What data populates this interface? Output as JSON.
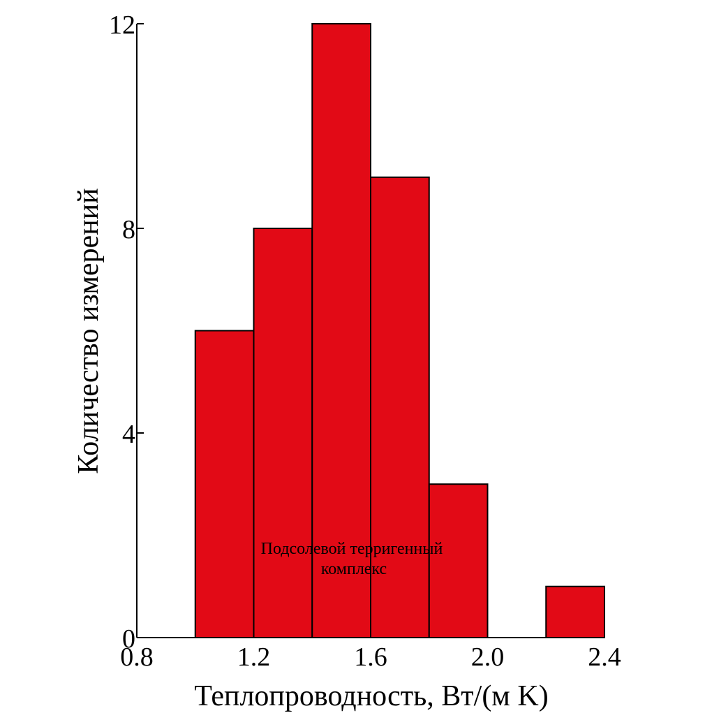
{
  "chart_data": {
    "type": "bar",
    "xlabel": "Теплопроводность, Вт/(м K)",
    "ylabel": "Количество измерений",
    "annotation": [
      "Подсолевой терригенный",
      "комплекс"
    ],
    "xlim": [
      0.8,
      2.4
    ],
    "ylim": [
      0,
      12
    ],
    "x_ticks": [
      0.8,
      1.2,
      1.6,
      2.0,
      2.4
    ],
    "x_tick_labels": [
      "0.8",
      "1.2",
      "1.6",
      "2.0",
      "2.4"
    ],
    "y_ticks": [
      0,
      4,
      8,
      12
    ],
    "y_tick_labels": [
      "0",
      "4",
      "8",
      "12"
    ],
    "bin_width": 0.2,
    "bins": [
      {
        "x0": 1.0,
        "x1": 1.2,
        "value": 6
      },
      {
        "x0": 1.2,
        "x1": 1.4,
        "value": 8
      },
      {
        "x0": 1.4,
        "x1": 1.6,
        "value": 12
      },
      {
        "x0": 1.6,
        "x1": 1.8,
        "value": 9
      },
      {
        "x0": 1.8,
        "x1": 2.0,
        "value": 3
      },
      {
        "x0": 2.0,
        "x1": 2.2,
        "value": 0
      },
      {
        "x0": 2.2,
        "x1": 2.4,
        "value": 1
      }
    ],
    "bar_color": "#e20a16",
    "grid": false,
    "legend": "none"
  }
}
